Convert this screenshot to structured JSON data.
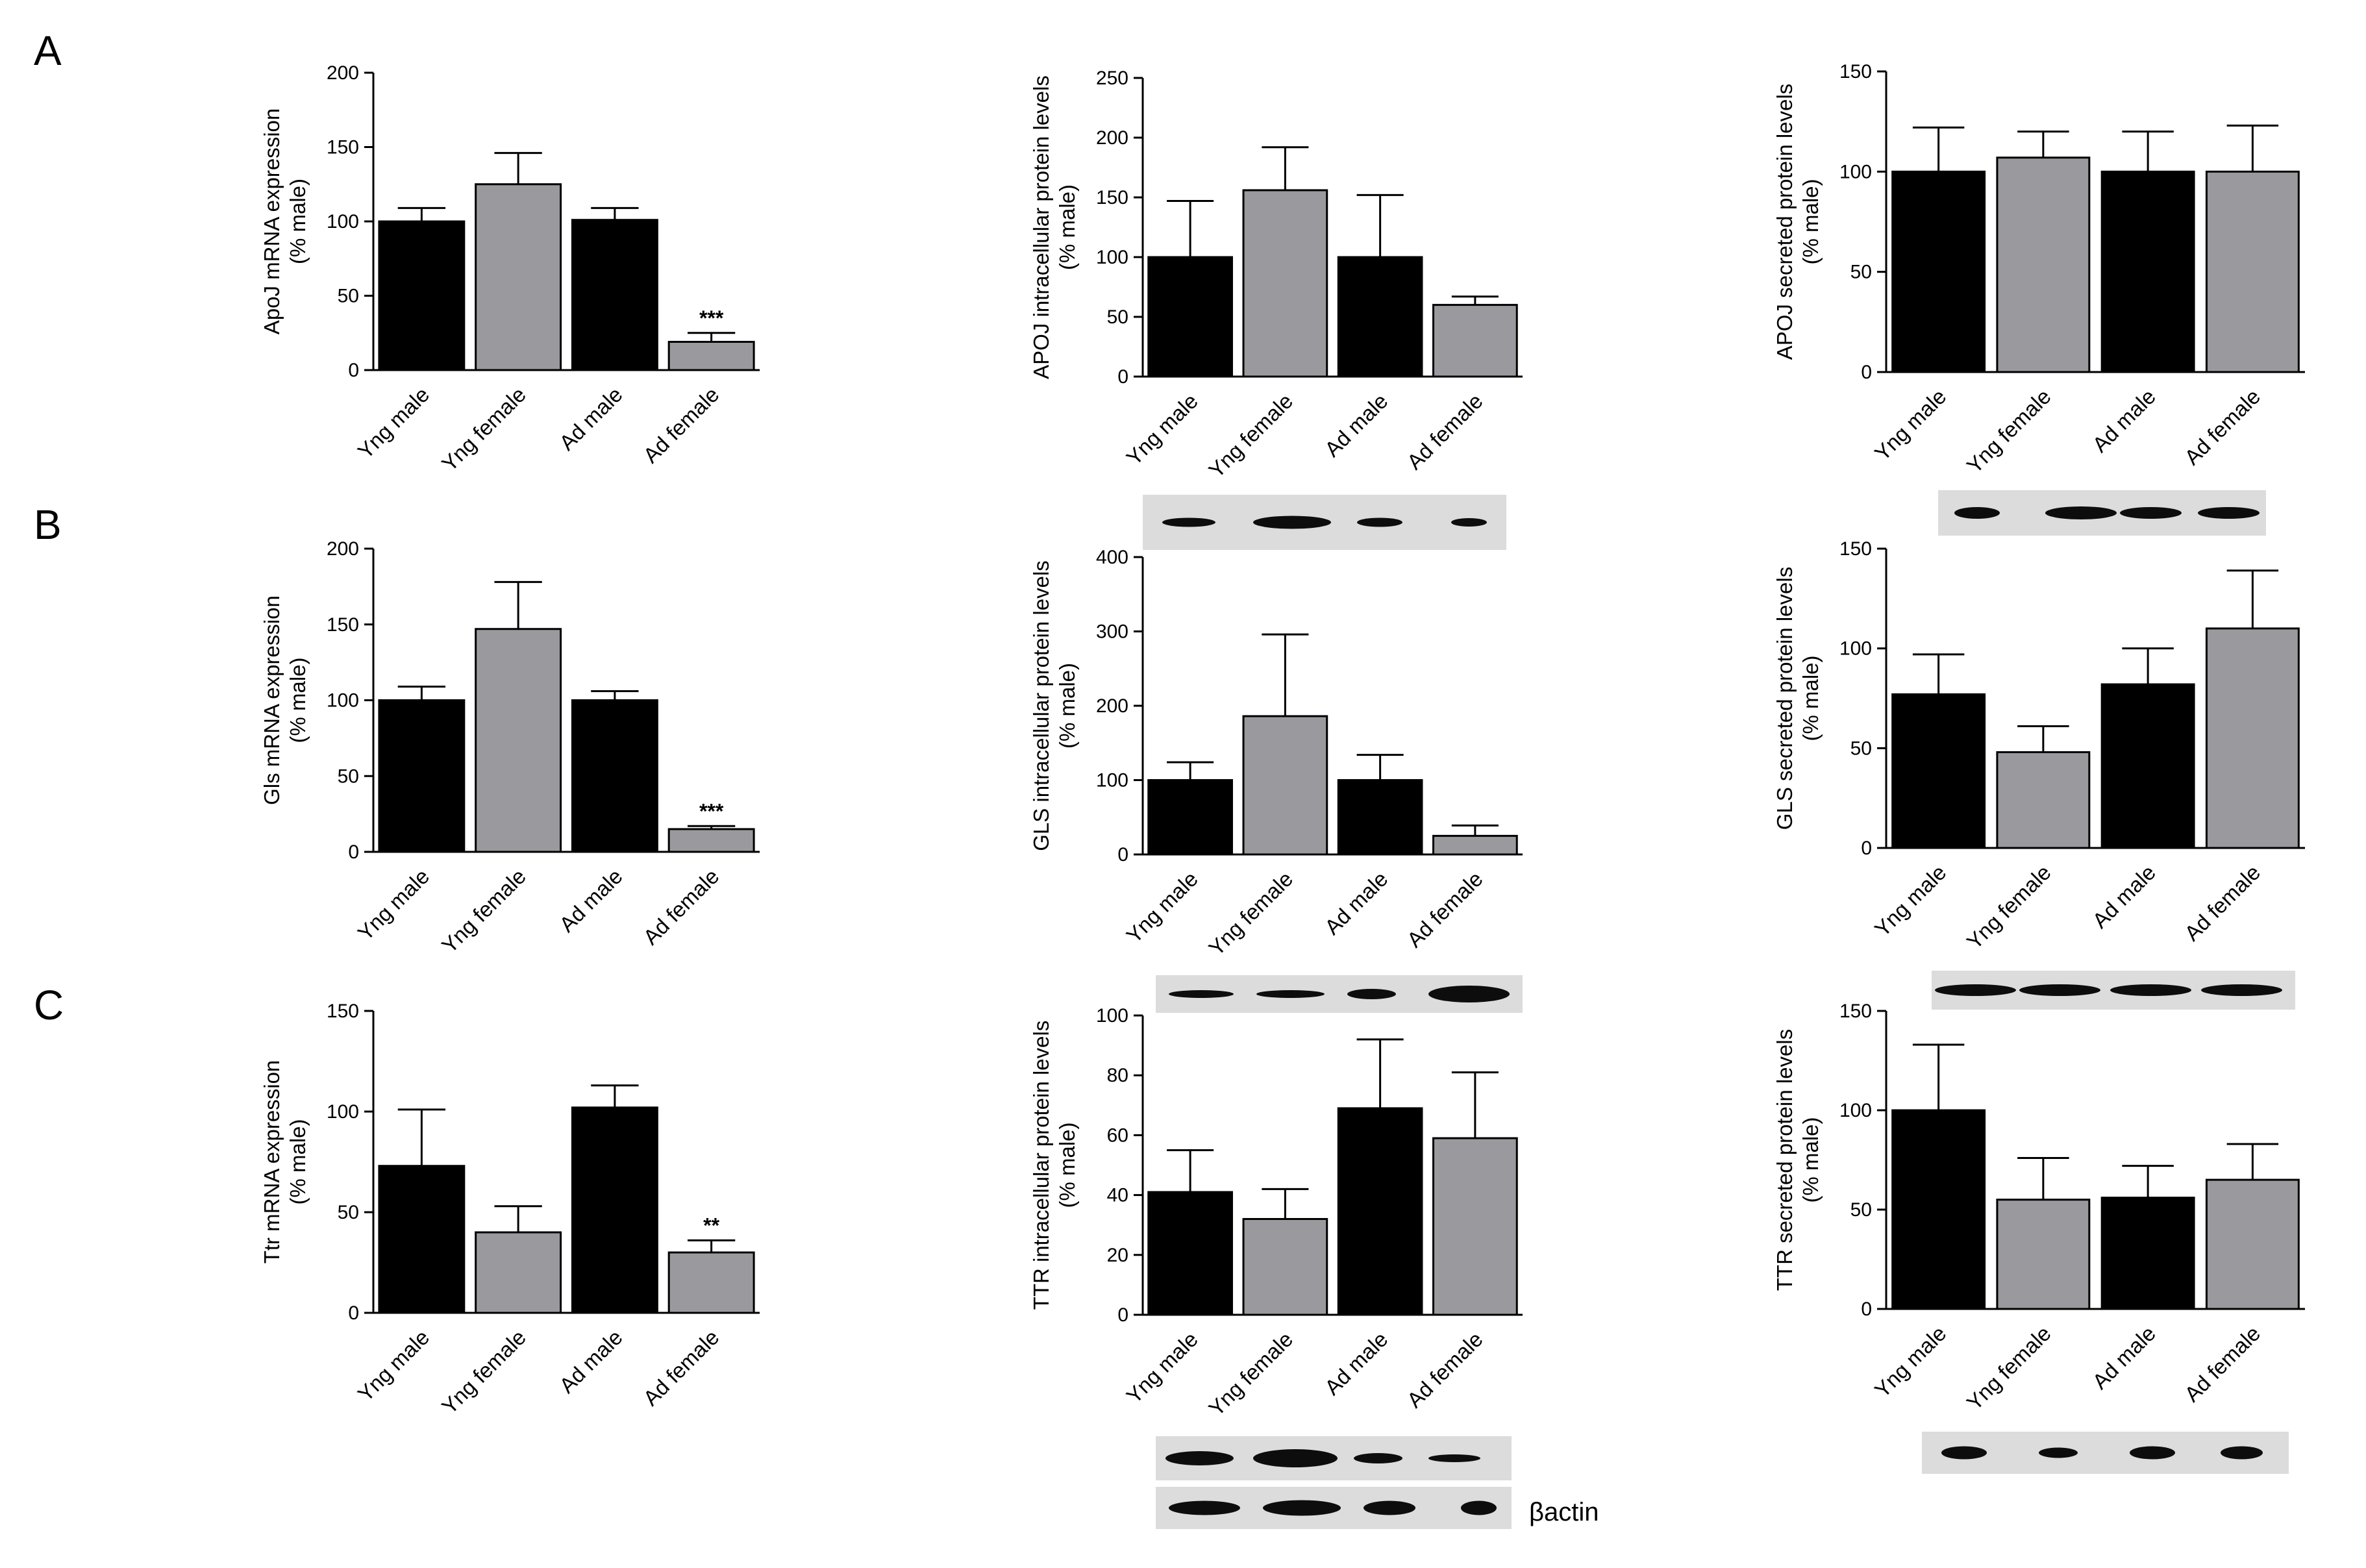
{
  "panel_labels": [
    "A",
    "B",
    "C"
  ],
  "beta_actin_label": "βactin",
  "colors": {
    "male_bar": "#000000",
    "female_bar": "#9a9a9e",
    "blot_background": "#dcdcdc",
    "blot_band": "#0d0d0d"
  },
  "chart_data": [
    {
      "id": "a1",
      "type": "bar",
      "ylabel": "ApoJ mRNA expression\n(% male)",
      "categories": [
        "Yng male",
        "Yng female",
        "Ad male",
        "Ad female"
      ],
      "values": [
        100,
        125,
        101,
        19
      ],
      "errors": [
        9,
        21,
        8,
        6
      ],
      "ylim": [
        0,
        200
      ],
      "yticks": [
        0,
        50,
        100,
        150,
        200
      ],
      "significance": [
        "",
        "",
        "",
        "***"
      ]
    },
    {
      "id": "a2",
      "type": "bar",
      "ylabel": "APOJ intracellular protein levels\n(% male)",
      "categories": [
        "Yng male",
        "Yng female",
        "Ad male",
        "Ad female"
      ],
      "values": [
        100,
        156,
        100,
        60
      ],
      "errors": [
        47,
        36,
        52,
        7
      ],
      "ylim": [
        0,
        250
      ],
      "yticks": [
        0,
        50,
        100,
        150,
        200,
        250
      ],
      "significance": [
        "",
        "",
        "",
        ""
      ]
    },
    {
      "id": "a3",
      "type": "bar",
      "ylabel": "APOJ secreted protein levels\n(% male)",
      "categories": [
        "Yng male",
        "Yng female",
        "Ad male",
        "Ad female"
      ],
      "values": [
        100,
        107,
        100,
        100
      ],
      "errors": [
        22,
        13,
        20,
        23
      ],
      "ylim": [
        0,
        150
      ],
      "yticks": [
        0,
        50,
        100,
        150
      ],
      "significance": [
        "",
        "",
        "",
        ""
      ]
    },
    {
      "id": "b1",
      "type": "bar",
      "ylabel": "Gls mRNA expression\n(% male)",
      "categories": [
        "Yng male",
        "Yng female",
        "Ad male",
        "Ad female"
      ],
      "values": [
        100,
        147,
        100,
        15
      ],
      "errors": [
        9,
        31,
        6,
        2
      ],
      "ylim": [
        0,
        200
      ],
      "yticks": [
        0,
        50,
        100,
        150,
        200
      ],
      "significance": [
        "",
        "",
        "",
        "***"
      ]
    },
    {
      "id": "b2",
      "type": "bar",
      "ylabel": "GLS intracellular protein levels\n(% male)",
      "categories": [
        "Yng male",
        "Yng female",
        "Ad male",
        "Ad female"
      ],
      "values": [
        100,
        186,
        100,
        25
      ],
      "errors": [
        24,
        110,
        34,
        14
      ],
      "ylim": [
        0,
        400
      ],
      "yticks": [
        0,
        100,
        200,
        300,
        400
      ],
      "significance": [
        "",
        "",
        "",
        ""
      ]
    },
    {
      "id": "b3",
      "type": "bar",
      "ylabel": "GLS secreted protein levels\n(% male)",
      "categories": [
        "Yng male",
        "Yng female",
        "Ad male",
        "Ad female"
      ],
      "values": [
        77,
        48,
        82,
        110
      ],
      "errors": [
        20,
        13,
        18,
        29
      ],
      "ylim": [
        0,
        150
      ],
      "yticks": [
        0,
        50,
        100,
        150
      ],
      "significance": [
        "",
        "",
        "",
        ""
      ]
    },
    {
      "id": "c1",
      "type": "bar",
      "ylabel": "Ttr mRNA expression\n(% male)",
      "categories": [
        "Yng male",
        "Yng female",
        "Ad male",
        "Ad female"
      ],
      "values": [
        73,
        40,
        102,
        30
      ],
      "errors": [
        28,
        13,
        11,
        6
      ],
      "ylim": [
        0,
        150
      ],
      "yticks": [
        0,
        50,
        100,
        150
      ],
      "significance": [
        "",
        "",
        "",
        "**"
      ]
    },
    {
      "id": "c2",
      "type": "bar",
      "ylabel": "TTR intracellular protein levels\n(% male)",
      "categories": [
        "Yng male",
        "Yng female",
        "Ad male",
        "Ad female"
      ],
      "values": [
        41,
        32,
        69,
        59
      ],
      "errors": [
        14,
        10,
        23,
        22
      ],
      "ylim": [
        0,
        100
      ],
      "yticks": [
        0,
        20,
        40,
        60,
        80,
        100
      ],
      "significance": [
        "",
        "",
        "",
        ""
      ]
    },
    {
      "id": "c3",
      "type": "bar",
      "ylabel": "TTR secreted protein levels\n(% male)",
      "categories": [
        "Yng male",
        "Yng female",
        "Ad male",
        "Ad female"
      ],
      "values": [
        100,
        55,
        56,
        65
      ],
      "errors": [
        33,
        21,
        16,
        18
      ],
      "ylim": [
        0,
        150
      ],
      "yticks": [
        0,
        50,
        100,
        150
      ],
      "significance": [
        "",
        "",
        "",
        ""
      ]
    }
  ]
}
